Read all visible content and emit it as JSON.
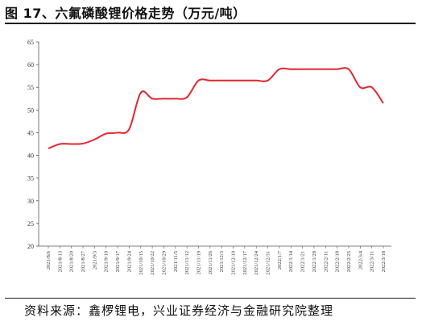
{
  "title": "图 17、六氟磷酸锂价格走势（万元/吨）",
  "source": "资料来源：鑫椤锂电，兴业证券经济与金融研究院整理",
  "chart_data": {
    "type": "line",
    "title": "六氟磷酸锂价格走势（万元/吨）",
    "xlabel": "",
    "ylabel": "",
    "ylim": [
      20,
      65
    ],
    "yticks": [
      20,
      25,
      30,
      35,
      40,
      45,
      50,
      55,
      60,
      65
    ],
    "grid": false,
    "line_color": "#e0262e",
    "categories": [
      "2021/8/6",
      "2021/8/13",
      "2021/8/20",
      "2021/8/27",
      "2021/9/3",
      "2021/9/10",
      "2021/9/17",
      "2021/9/24",
      "2021/10/15",
      "2021/10/22",
      "2021/10/29",
      "2021/11/5",
      "2021/11/12",
      "2021/11/19",
      "2021/11/26",
      "2021/12/3",
      "2021/12/10",
      "2021/12/17",
      "2021/12/24",
      "2021/12/31",
      "2022/1/7",
      "2022/1/14",
      "2022/1/21",
      "2022/1/28",
      "2022/2/11",
      "2022/2/18",
      "2022/2/25",
      "2022/3/4",
      "2022/3/11",
      "2022/3/18"
    ],
    "series": [
      {
        "values": [
          41.5,
          42.5,
          42.5,
          42.6,
          43.5,
          44.8,
          45.0,
          45.8,
          53.8,
          52.5,
          52.5,
          52.5,
          52.8,
          56.5,
          56.5,
          56.5,
          56.5,
          56.5,
          56.5,
          56.5,
          59.0,
          59.0,
          59.0,
          59.0,
          59.0,
          59.0,
          59.0,
          55.0,
          55.0,
          51.5
        ]
      }
    ]
  }
}
